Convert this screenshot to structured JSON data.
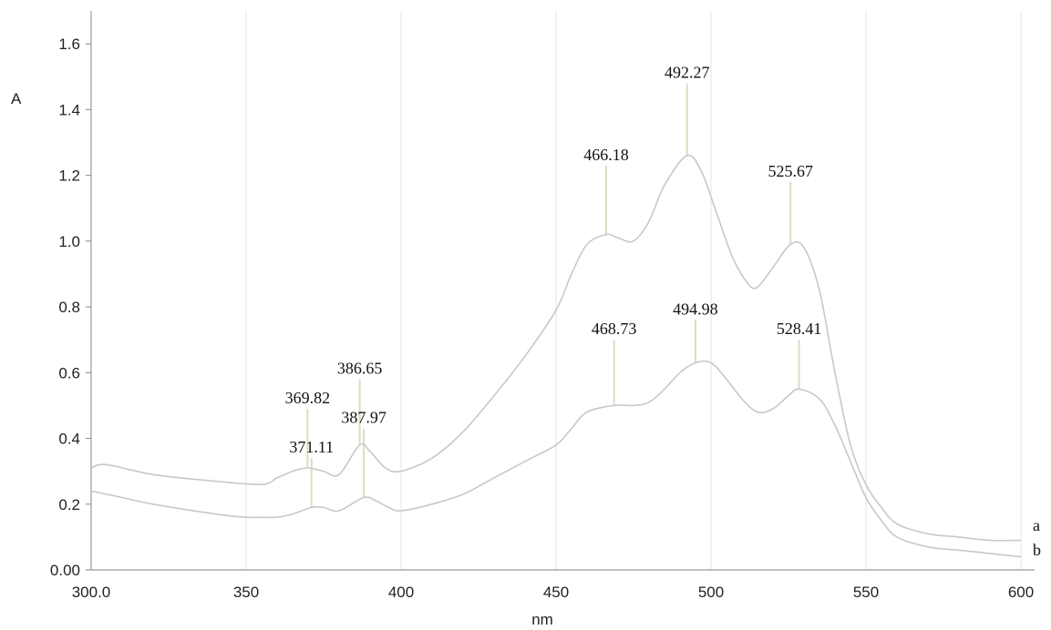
{
  "chart_data": {
    "type": "line",
    "xlabel": "nm",
    "ylabel": "A",
    "xlim": [
      300,
      605
    ],
    "ylim": [
      0,
      1.7
    ],
    "x_ticks": [
      "300.0",
      "350",
      "400",
      "450",
      "500",
      "550",
      "600"
    ],
    "y_ticks": [
      "0.00",
      "0.2",
      "0.4",
      "0.6",
      "0.8",
      "1.0",
      "1.2",
      "1.4",
      "1.6"
    ],
    "grid": "vertical",
    "series": [
      {
        "name": "a",
        "x": [
          300,
          305,
          320,
          340,
          355,
          360,
          365,
          369.82,
          375,
          380,
          386.65,
          390,
          395,
          400,
          410,
          420,
          430,
          440,
          450,
          455,
          460,
          466.18,
          470,
          475,
          480,
          485,
          492.27,
          497,
          502,
          507,
          512,
          515,
          520,
          525.67,
          530,
          535,
          540,
          545,
          550,
          555,
          560,
          570,
          580,
          590,
          600
        ],
        "y": [
          0.31,
          0.32,
          0.29,
          0.27,
          0.26,
          0.28,
          0.3,
          0.31,
          0.3,
          0.29,
          0.38,
          0.36,
          0.31,
          0.3,
          0.34,
          0.42,
          0.53,
          0.65,
          0.79,
          0.9,
          0.99,
          1.02,
          1.01,
          1.0,
          1.06,
          1.17,
          1.26,
          1.21,
          1.08,
          0.95,
          0.87,
          0.86,
          0.92,
          0.99,
          0.98,
          0.85,
          0.6,
          0.38,
          0.26,
          0.19,
          0.14,
          0.11,
          0.1,
          0.09,
          0.09
        ]
      },
      {
        "name": "b",
        "x": [
          300,
          310,
          320,
          340,
          350,
          355,
          360,
          365,
          371.11,
          375,
          380,
          387.97,
          392,
          396,
          400,
          410,
          420,
          430,
          440,
          450,
          455,
          460,
          468.73,
          475,
          480,
          485,
          490,
          494.98,
          500,
          505,
          510,
          515,
          520,
          525,
          528.41,
          535,
          540,
          545,
          550,
          555,
          560,
          570,
          580,
          590,
          600
        ],
        "y": [
          0.24,
          0.22,
          0.2,
          0.17,
          0.16,
          0.16,
          0.16,
          0.17,
          0.19,
          0.19,
          0.18,
          0.22,
          0.21,
          0.19,
          0.18,
          0.2,
          0.23,
          0.28,
          0.33,
          0.38,
          0.43,
          0.48,
          0.5,
          0.5,
          0.51,
          0.55,
          0.6,
          0.63,
          0.63,
          0.58,
          0.52,
          0.48,
          0.49,
          0.53,
          0.55,
          0.52,
          0.44,
          0.33,
          0.22,
          0.15,
          0.1,
          0.07,
          0.06,
          0.05,
          0.04
        ]
      }
    ],
    "peaks": [
      {
        "label": "492.27",
        "x": 492.27,
        "y": 1.26,
        "top": 1.48,
        "series": "a"
      },
      {
        "label": "466.18",
        "x": 466.18,
        "y": 1.02,
        "top": 1.23,
        "series": "a"
      },
      {
        "label": "525.67",
        "x": 525.67,
        "y": 0.99,
        "top": 1.18,
        "series": "a"
      },
      {
        "label": "386.65",
        "x": 386.65,
        "y": 0.38,
        "top": 0.58,
        "series": "a"
      },
      {
        "label": "369.82",
        "x": 369.82,
        "y": 0.31,
        "top": 0.49,
        "series": "a"
      },
      {
        "label": "494.98",
        "x": 494.98,
        "y": 0.63,
        "top": 0.76,
        "series": "b"
      },
      {
        "label": "468.73",
        "x": 468.73,
        "y": 0.5,
        "top": 0.7,
        "series": "b"
      },
      {
        "label": "528.41",
        "x": 528.41,
        "y": 0.55,
        "top": 0.7,
        "series": "b"
      },
      {
        "label": "387.97",
        "x": 387.97,
        "y": 0.22,
        "top": 0.43,
        "series": "b"
      },
      {
        "label": "371.11",
        "x": 371.11,
        "y": 0.19,
        "top": 0.34,
        "series": "b"
      }
    ],
    "series_labels": [
      "a",
      "b"
    ]
  }
}
